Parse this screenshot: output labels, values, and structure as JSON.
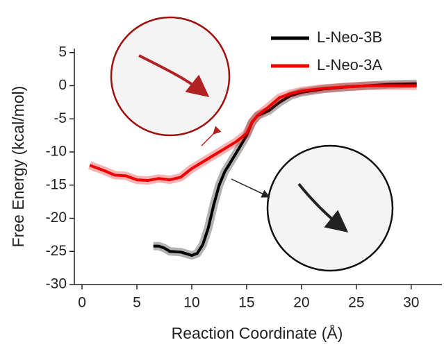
{
  "chart_data": {
    "type": "line",
    "x_label": "Reaction Coordinate (Å)",
    "y_label": "Free Energy (kcal/mol)",
    "xlim": [
      -0.7,
      32.8
    ],
    "ylim": [
      -30,
      5.6
    ],
    "xticks": [
      0,
      5,
      10,
      15,
      20,
      25,
      30
    ],
    "yticks": [
      5,
      0,
      -5,
      -10,
      -15,
      -20,
      -25,
      -30
    ],
    "series": [
      {
        "name": "L-Neo-3B",
        "color": "#000000",
        "x": [
          6.5,
          7,
          7.5,
          8,
          9,
          10,
          10.5,
          11,
          11.5,
          12,
          12.5,
          13,
          14,
          15,
          15.5,
          16,
          17,
          18,
          19,
          20,
          22,
          24,
          26,
          28,
          30.5
        ],
        "values": [
          -24.2,
          -24.2,
          -24.5,
          -25,
          -25.1,
          -25.6,
          -25.3,
          -24,
          -21.5,
          -18,
          -15,
          -13,
          -10.3,
          -7.5,
          -5.5,
          -4.5,
          -3.8,
          -2.5,
          -1.5,
          -1,
          -0.5,
          -0.2,
          0,
          0.2,
          0.3
        ]
      },
      {
        "name": "L-Neo-3A",
        "color": "#ee0000",
        "x": [
          0.7,
          2,
          3,
          4,
          5,
          6,
          7,
          8,
          9,
          10,
          11,
          12,
          13,
          14,
          15,
          15.5,
          16,
          17,
          18,
          19,
          20,
          22,
          24,
          26,
          28,
          30.5
        ],
        "values": [
          -12,
          -12.8,
          -13.5,
          -13.6,
          -14.2,
          -14.3,
          -14,
          -14.2,
          -13.8,
          -12.5,
          -11.5,
          -10.5,
          -9.5,
          -8.5,
          -7.2,
          -5.5,
          -4.5,
          -3.2,
          -1.8,
          -1.2,
          -0.8,
          -0.4,
          -0.2,
          0,
          0,
          0
        ]
      }
    ]
  }
}
